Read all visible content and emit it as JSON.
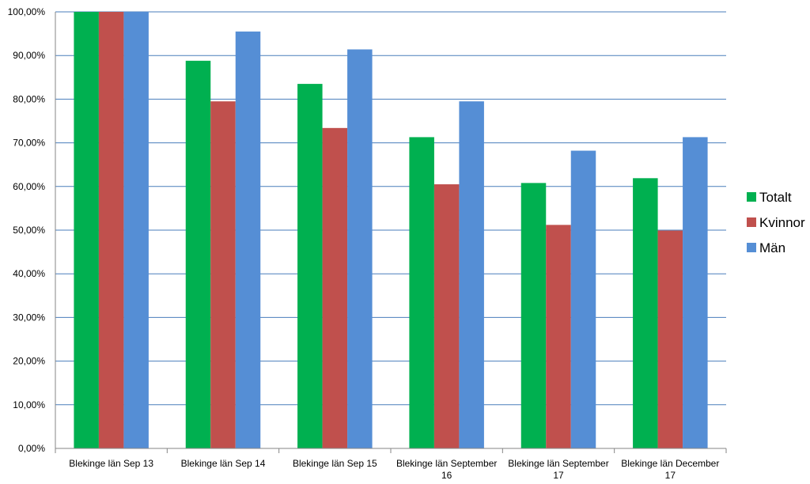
{
  "chart_data": {
    "type": "bar",
    "categories": [
      [
        "Blekinge län Sep 13"
      ],
      [
        "Blekinge län Sep 14"
      ],
      [
        "Blekinge län Sep 15"
      ],
      [
        "Blekinge län September",
        "16"
      ],
      [
        "Blekinge län September",
        "17"
      ],
      [
        "Blekinge län December",
        "17"
      ]
    ],
    "series": [
      {
        "name": "Totalt",
        "color": "#00b050",
        "values": [
          1.0,
          0.888,
          0.835,
          0.713,
          0.608,
          0.619
        ]
      },
      {
        "name": "Kvinnor",
        "color": "#c0504d",
        "values": [
          1.0,
          0.795,
          0.734,
          0.605,
          0.512,
          0.499
        ]
      },
      {
        "name": "Män",
        "color": "#558ed5",
        "values": [
          1.0,
          0.955,
          0.914,
          0.795,
          0.682,
          0.713
        ]
      }
    ],
    "ylim": [
      0,
      1
    ],
    "yticks": [
      "0,00%",
      "10,00%",
      "20,00%",
      "30,00%",
      "40,00%",
      "50,00%",
      "60,00%",
      "70,00%",
      "80,00%",
      "90,00%",
      "100,00%"
    ],
    "grid": true,
    "gridline_color": "#4a7ebb",
    "legend_position": "right"
  }
}
